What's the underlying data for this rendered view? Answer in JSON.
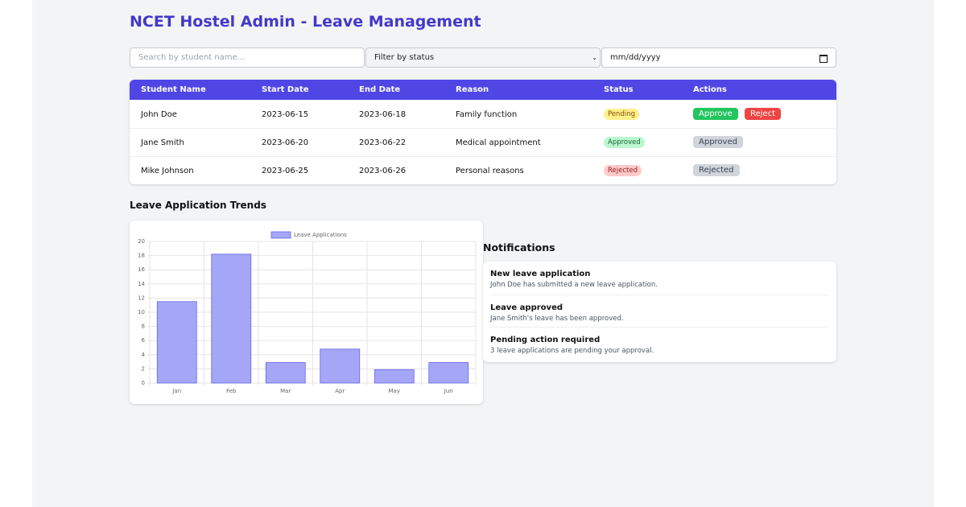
{
  "header": {
    "title": "NCET Hostel Admin - Leave Management"
  },
  "filters": {
    "search_placeholder": "Search by student name...",
    "status_filter": "Filter by status",
    "date_placeholder": "mm/dd/yyyy"
  },
  "table": {
    "columns": [
      "Student Name",
      "Start Date",
      "End Date",
      "Reason",
      "Status",
      "Actions"
    ],
    "rows": [
      {
        "student": "John Doe",
        "start": "2023-06-15",
        "end": "2023-06-18",
        "reason": "Family function",
        "status": "Pending",
        "actions": [
          "Approve",
          "Reject"
        ]
      },
      {
        "student": "Jane Smith",
        "start": "2023-06-20",
        "end": "2023-06-22",
        "reason": "Medical appointment",
        "status": "Approved",
        "actions": [
          "Approved"
        ]
      },
      {
        "student": "Mike Johnson",
        "start": "2023-06-25",
        "end": "2023-06-26",
        "reason": "Personal reasons",
        "status": "Rejected",
        "actions": [
          "Rejected"
        ]
      }
    ]
  },
  "trends_title": "Leave Application Trends",
  "chart_data": {
    "type": "bar",
    "categories": [
      "Jan",
      "Feb",
      "Mar",
      "Apr",
      "May",
      "Jun"
    ],
    "series": [
      {
        "name": "Leave Applications",
        "color": "#a5a6f6",
        "values": [
          11.5,
          18.2,
          2.9,
          4.8,
          1.9,
          2.9
        ]
      }
    ],
    "ylim": [
      0,
      20
    ],
    "yticks": [
      0,
      2,
      4,
      6,
      8,
      10,
      12,
      14,
      16,
      18,
      20
    ],
    "grid": true,
    "legend": "top"
  },
  "notifications": {
    "title": "Notifications",
    "items": [
      {
        "title": "New leave application",
        "text": "John Doe has submitted a new leave application."
      },
      {
        "title": "Leave approved",
        "text": "Jane Smith's leave has been approved."
      },
      {
        "title": "Pending action required",
        "text": "3 leave applications are pending your approval."
      }
    ]
  }
}
